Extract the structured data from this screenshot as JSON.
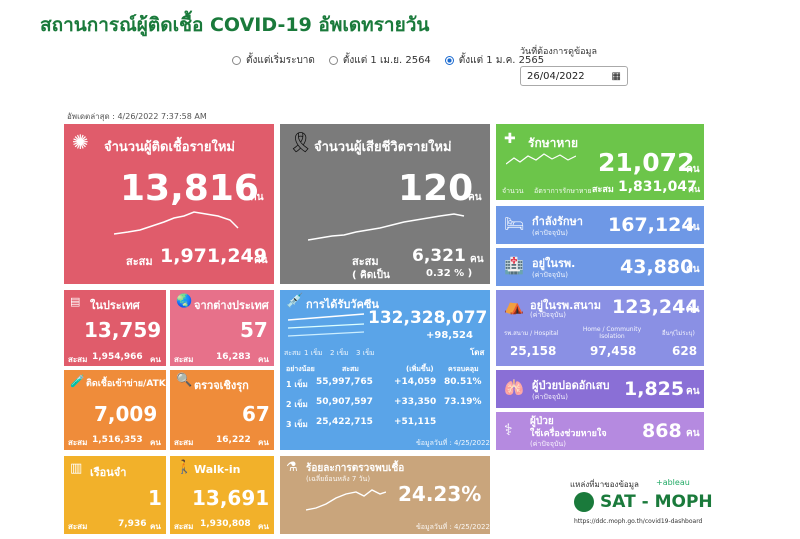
{
  "title": "สถานการณ์ผู้ติดเชื้อ COVID-19 อัพเดทรายวัน",
  "filters": {
    "options": [
      "ตั้งแต่เริ่มระบาด",
      "ตั้งแต่ 1 เม.ย. 2564",
      "ตั้งแต่ 1 ม.ค. 2565"
    ],
    "selected_index": 2,
    "date_label": "วันที่ต้องการดูข้อมูล",
    "date_value": "26/04/2022"
  },
  "updated": "อัพเดตล่าสุด : 4/26/2022 7:37:58 AM",
  "new_cases": {
    "label": "จำนวนผู้ติดเชื้อรายใหม่",
    "value": "13,816",
    "unit": "คน",
    "cum_label": "สะสม",
    "cum_value": "1,971,249",
    "cum_unit": "คน"
  },
  "new_deaths": {
    "label": "จำนวนผู้เสียชีวิตรายใหม่",
    "value": "120",
    "unit": "คน",
    "cum_label": "สะสม",
    "cum_value": "6,321",
    "cum_unit": "คน",
    "pct_label": "( คิดเป็น",
    "pct_value": "0.32 % )"
  },
  "recovered": {
    "label": "รักษาหาย",
    "value": "21,072",
    "unit": "คน",
    "legend1": "จำนวน",
    "legend2": "อัตราการรักษาหาย",
    "cum_label": "สะสม",
    "cum_value": "1,831,047",
    "cum_unit": "คน"
  },
  "in_treatment": {
    "label": "กำลังรักษา",
    "sub": "(ค่าปัจจุบัน)",
    "value": "167,124",
    "unit": "คน"
  },
  "in_hospital": {
    "label": "อยู่ในรพ.",
    "sub": "(ค่าปัจจุบัน)",
    "value": "43,880",
    "unit": "คน"
  },
  "field_hospital": {
    "label": "อยู่ในรพ.สนาม",
    "sub": "(ค่าปัจจุบัน)",
    "value": "123,244",
    "unit": "คน",
    "cols": [
      {
        "head": "รพ.สนาม / Hospital",
        "val": "25,158"
      },
      {
        "head": "Home / Community Isolation",
        "val": "97,458"
      },
      {
        "head": "อื่นๆ(ไม่ระบุ)",
        "val": "628"
      }
    ]
  },
  "severe": {
    "label": "ผู้ป่วยปอดอักเสบ",
    "sub": "(ค่าปัจจุบัน)",
    "value": "1,825",
    "unit": "คน"
  },
  "ventilator": {
    "label1": "ผู้ป่วย",
    "label2": "ใช้เครื่องช่วยหายใจ",
    "sub": "(ค่าปัจจุบัน)",
    "value": "868",
    "unit": "คน"
  },
  "domestic": {
    "label": "ในประเทศ",
    "value": "13,759",
    "cum_label": "สะสม",
    "cum_value": "1,954,966",
    "cum_unit": "คน"
  },
  "imported": {
    "label": "จากต่างประเทศ",
    "value": "57",
    "cum_label": "สะสม",
    "cum_value": "16,283",
    "cum_unit": "คน"
  },
  "prison": {
    "label": "ติดเชื้อเข้าข่าย/ATK",
    "value": "7,009",
    "cum_label": "สะสม",
    "cum_value": "1,516,353",
    "cum_unit": "คน"
  },
  "proactive": {
    "label": "ตรวจเชิงรุก",
    "value": "67",
    "cum_label": "สะสม",
    "cum_value": "16,222",
    "cum_unit": "คน"
  },
  "jail": {
    "label": "เรือนจำ",
    "value": "1",
    "cum_label": "สะสม",
    "cum_value": "7,936",
    "cum_unit": "คน"
  },
  "walkin": {
    "label": "Walk-in",
    "value": "13,691",
    "cum_label": "สะสม",
    "cum_value": "1,930,808",
    "cum_unit": "คน"
  },
  "vaccine": {
    "label": "การได้รับวัคซีน",
    "total": "132,328,077",
    "delta": "+98,524",
    "dose_unit": "โดส",
    "legend": [
      "สะสม",
      "1 เข็ม",
      "2 เข็ม",
      "3 เข็ม"
    ],
    "headers": [
      "อย่างน้อย",
      "สะสม",
      "(เพิ่มขึ้น)",
      "ครอบคลุม"
    ],
    "rows": [
      {
        "dose": "1 เข็ม",
        "cum": "55,997,765",
        "inc": "+14,059",
        "cov": "80.51%"
      },
      {
        "dose": "2 เข็ม",
        "cum": "50,907,597",
        "inc": "+33,350",
        "cov": "73.19%"
      },
      {
        "dose": "3 เข็ม",
        "cum": "25,422,715",
        "inc": "+51,115",
        "cov": ""
      }
    ],
    "asof": "ข้อมูลวันที่ : 4/25/2022"
  },
  "positivity": {
    "label": "ร้อยละการตรวจพบเชื้อ",
    "sub": "(เฉลี่ยย้อนหลัง 7 วัน)",
    "value": "24.23%",
    "asof": "ข้อมูลวันที่ : 4/25/2022"
  },
  "source": {
    "label": "แหล่งที่มาของข้อมูล",
    "tableau": "+ableau",
    "org": "SAT - MOPH",
    "url": "https://ddc.moph.go.th/covid19-dashboard"
  },
  "colors": {
    "red": "#e05c6b",
    "gray": "#7b7b7b",
    "green": "#6cc54a",
    "blue": "#5b8fe0",
    "orange": "#ef8c3a",
    "yellow": "#f2b12a",
    "title": "#1a7a3b"
  }
}
